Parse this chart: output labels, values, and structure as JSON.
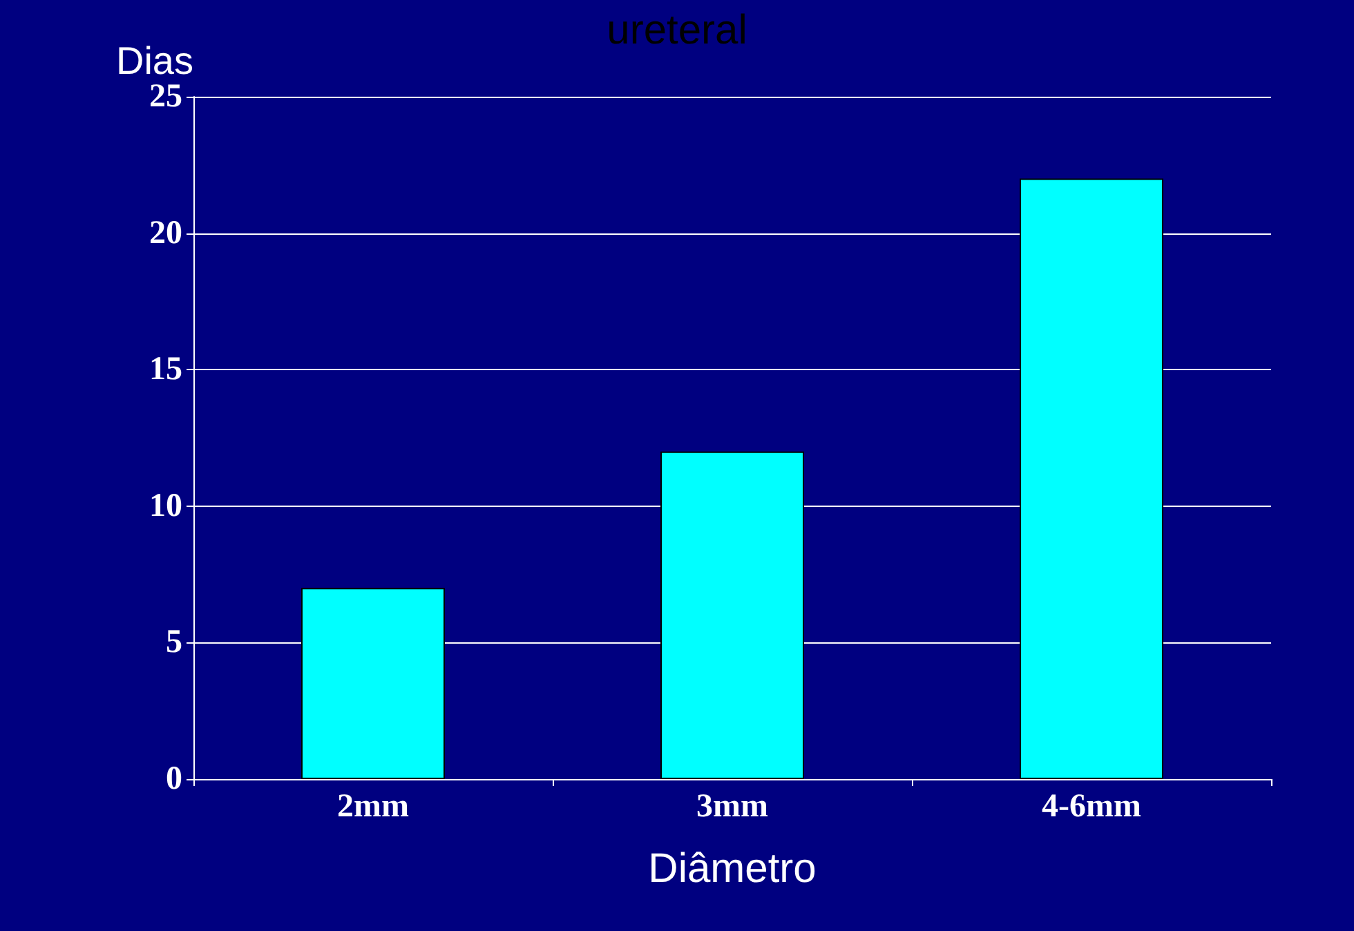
{
  "chart_data": {
    "type": "bar",
    "title": "ureteral",
    "xlabel": "Diâmetro",
    "ylabel": "Dias",
    "categories": [
      "2mm",
      "3mm",
      "4-6mm"
    ],
    "values": [
      7,
      12,
      22
    ],
    "color": "#00ffff",
    "ylim": [
      0,
      25
    ],
    "yticks": [
      0,
      5,
      10,
      15,
      20,
      25
    ],
    "grid": "y"
  }
}
